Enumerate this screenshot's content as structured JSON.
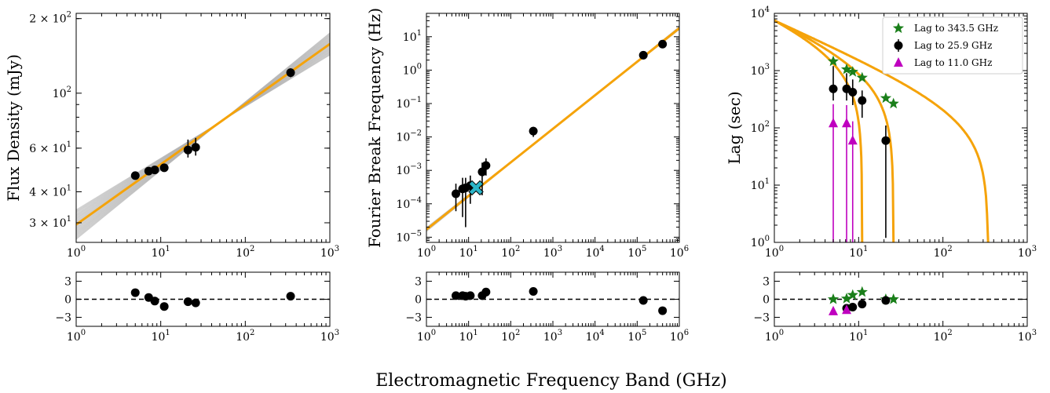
{
  "figure": {
    "xlabel": "Electromagnetic Frequency Band (GHz)"
  },
  "chart_data": [
    {
      "type": "scatter",
      "panel": "flux",
      "ylabel": "Flux Density (mJy)",
      "xscale": "log",
      "yscale": "log",
      "xlim": [
        1,
        1000
      ],
      "ylim": [
        25,
        210
      ],
      "xticks": [
        {
          "v": 1,
          "t": "10^0"
        },
        {
          "v": 10,
          "t": "10^1"
        },
        {
          "v": 100,
          "t": "10^2"
        },
        {
          "v": 1000,
          "t": "10^3"
        }
      ],
      "yticks": [
        {
          "v": 30,
          "t": "3 × 10^1"
        },
        {
          "v": 40,
          "t": "4 × 10^1"
        },
        {
          "v": 60,
          "t": "6 × 10^1"
        },
        {
          "v": 100,
          "t": "10^2"
        },
        {
          "v": 200,
          "t": "2 × 10^2"
        }
      ],
      "series": [
        {
          "marker": "circle",
          "color": "#000000",
          "points": [
            {
              "x": 5.0,
              "y": 46.5,
              "ylo": 45,
              "yhi": 48
            },
            {
              "x": 7.2,
              "y": 48.5,
              "ylo": 47,
              "yhi": 50
            },
            {
              "x": 8.5,
              "y": 49.0,
              "ylo": 47.5,
              "yhi": 50.5
            },
            {
              "x": 11.0,
              "y": 50.0,
              "ylo": 48.5,
              "yhi": 51.5
            },
            {
              "x": 21.0,
              "y": 59.0,
              "ylo": 55,
              "yhi": 65
            },
            {
              "x": 25.9,
              "y": 60.5,
              "ylo": 56,
              "yhi": 66
            },
            {
              "x": 343.5,
              "y": 121.0,
              "ylo": 116,
              "yhi": 126
            }
          ]
        }
      ],
      "model_line": {
        "color": "#f5a30a",
        "x": [
          1,
          1000
        ],
        "y": [
          29.5,
          158
        ]
      },
      "model_samples": {
        "color": "#b0b0b0",
        "count": 40,
        "center": [
          1,
          29.5
        ],
        "end": [
          1000,
          158
        ]
      },
      "residuals": {
        "ylim": [
          -4.5,
          4.5
        ],
        "yticks": [
          {
            "v": -3,
            "t": "−3"
          },
          {
            "v": 0,
            "t": "0"
          },
          {
            "v": 3,
            "t": "3"
          }
        ],
        "points": [
          {
            "x": 5.0,
            "y": 1.1
          },
          {
            "x": 7.2,
            "y": 0.3
          },
          {
            "x": 8.5,
            "y": -0.3
          },
          {
            "x": 11.0,
            "y": -1.2
          },
          {
            "x": 21.0,
            "y": -0.4
          },
          {
            "x": 25.9,
            "y": -0.6
          },
          {
            "x": 343.5,
            "y": 0.5
          }
        ]
      }
    },
    {
      "type": "scatter",
      "panel": "break",
      "ylabel": "Fourier Break Frequency (Hz)",
      "xscale": "log",
      "yscale": "log",
      "xlim": [
        1,
        1000000
      ],
      "ylim": [
        7e-06,
        50
      ],
      "xticks": [
        {
          "v": 1,
          "t": "10^0"
        },
        {
          "v": 10,
          "t": "10^1"
        },
        {
          "v": 100,
          "t": "10^2"
        },
        {
          "v": 1000,
          "t": "10^3"
        },
        {
          "v": 10000,
          "t": "10^4"
        },
        {
          "v": 100000,
          "t": "10^5"
        },
        {
          "v": 1000000,
          "t": "10^6"
        }
      ],
      "yticks": [
        {
          "v": 1e-05,
          "t": "10^-5"
        },
        {
          "v": 0.0001,
          "t": "10^-4"
        },
        {
          "v": 0.001,
          "t": "10^-3"
        },
        {
          "v": 0.01,
          "t": "10^-2"
        },
        {
          "v": 0.1,
          "t": "10^-1"
        },
        {
          "v": 1,
          "t": "10^0"
        },
        {
          "v": 10,
          "t": "10^1"
        }
      ],
      "series": [
        {
          "marker": "circle",
          "color": "#000000",
          "points": [
            {
              "x": 5.0,
              "y": 0.0002,
              "ylo": 6e-05,
              "yhi": 0.0004
            },
            {
              "x": 7.2,
              "y": 0.00028,
              "ylo": 4e-05,
              "yhi": 0.0006
            },
            {
              "x": 8.5,
              "y": 0.0003,
              "ylo": 2e-05,
              "yhi": 0.0006
            },
            {
              "x": 11.0,
              "y": 0.00035,
              "ylo": 0.0001,
              "yhi": 0.0007
            },
            {
              "x": 21.0,
              "y": 0.0009,
              "ylo": 0.00018,
              "yhi": 0.0017
            },
            {
              "x": 25.9,
              "y": 0.0014,
              "ylo": 0.0007,
              "yhi": 0.0023
            },
            {
              "x": 343.5,
              "y": 0.015,
              "ylo": 0.01,
              "yhi": 0.02
            },
            {
              "x": 140000,
              "y": 2.8,
              "ylo": 2.5,
              "yhi": 3.1
            },
            {
              "x": 400000,
              "y": 6.0,
              "ylo": 5.4,
              "yhi": 6.6
            }
          ]
        },
        {
          "marker": "x",
          "color": "#2bb5c8",
          "points": [
            {
              "x": 15.0,
              "y": 0.0003
            }
          ]
        }
      ],
      "model_line": {
        "color": "#f5a30a",
        "x": [
          1,
          1000000
        ],
        "y": [
          1.7e-05,
          18
        ]
      },
      "model_samples": {
        "color": "#9a9a9a",
        "count": 6,
        "center": [
          1,
          1.7e-05
        ],
        "end": [
          1000000,
          18
        ]
      },
      "residuals": {
        "xlim": [
          1,
          1000000
        ],
        "ylim": [
          -4.5,
          4.5
        ],
        "yticks": [
          {
            "v": -3,
            "t": "−3"
          },
          {
            "v": 0,
            "t": "0"
          },
          {
            "v": 3,
            "t": "3"
          }
        ],
        "points": [
          {
            "x": 5.0,
            "y": 0.6
          },
          {
            "x": 7.2,
            "y": 0.6
          },
          {
            "x": 8.5,
            "y": 0.5
          },
          {
            "x": 11.0,
            "y": 0.6
          },
          {
            "x": 21.0,
            "y": 0.6
          },
          {
            "x": 25.9,
            "y": 1.2
          },
          {
            "x": 343.5,
            "y": 1.3
          },
          {
            "x": 140000,
            "y": -0.2
          },
          {
            "x": 400000,
            "y": -1.9
          }
        ]
      }
    },
    {
      "type": "scatter",
      "panel": "lag",
      "ylabel": "Lag (sec)",
      "xscale": "log",
      "yscale": "log",
      "xlim": [
        1,
        1000
      ],
      "ylim": [
        1,
        10000
      ],
      "xticks": [
        {
          "v": 1,
          "t": "10^0"
        },
        {
          "v": 10,
          "t": "10^1"
        },
        {
          "v": 100,
          "t": "10^2"
        },
        {
          "v": 1000,
          "t": "10^3"
        }
      ],
      "yticks": [
        {
          "v": 1,
          "t": "10^0"
        },
        {
          "v": 10,
          "t": "10^1"
        },
        {
          "v": 100,
          "t": "10^2"
        },
        {
          "v": 1000,
          "t": "10^3"
        },
        {
          "v": 10000,
          "t": "10^4"
        }
      ],
      "legend": {
        "placement": "top-right"
      },
      "series": [
        {
          "name": "Lag to 343.5 GHz",
          "marker": "star",
          "color": "#1a7f1a",
          "points": [
            {
              "x": 5.0,
              "y": 1450
            },
            {
              "x": 7.2,
              "y": 1050
            },
            {
              "x": 8.5,
              "y": 950
            },
            {
              "x": 11.0,
              "y": 750
            },
            {
              "x": 21.0,
              "y": 330
            },
            {
              "x": 25.9,
              "y": 265
            }
          ]
        },
        {
          "name": "Lag to 25.9 GHz",
          "marker": "circle",
          "color": "#000000",
          "points": [
            {
              "x": 5.0,
              "y": 480,
              "ylo": 300,
              "yhi": 1200
            },
            {
              "x": 7.2,
              "y": 480,
              "ylo": 300,
              "yhi": 900
            },
            {
              "x": 8.5,
              "y": 420,
              "ylo": 250,
              "yhi": 700
            },
            {
              "x": 11.0,
              "y": 300,
              "ylo": 150,
              "yhi": 450
            },
            {
              "x": 21.0,
              "y": 60,
              "ylo": 1.2,
              "yhi": 110
            }
          ]
        },
        {
          "name": "Lag to 11.0 GHz",
          "marker": "triangle",
          "color": "#bf00bf",
          "points": [
            {
              "x": 5.0,
              "y": 120,
              "ylo": 1,
              "yhi": 260
            },
            {
              "x": 7.2,
              "y": 120,
              "ylo": 1,
              "yhi": 250
            },
            {
              "x": 8.5,
              "y": 60,
              "ylo": 1,
              "yhi": 130
            }
          ]
        }
      ],
      "model_curves": [
        {
          "ref": 343.5,
          "color": "#f5a30a"
        },
        {
          "ref": 25.9,
          "color": "#f5a30a"
        },
        {
          "ref": 11.0,
          "color": "#f5a30a"
        }
      ],
      "residuals": {
        "ylim": [
          -4.5,
          4.5
        ],
        "yticks": [
          {
            "v": -3,
            "t": "−3"
          },
          {
            "v": 0,
            "t": "0"
          },
          {
            "v": 3,
            "t": "3"
          }
        ],
        "points": [
          {
            "series": 0,
            "x": 5.0,
            "y": 0.0
          },
          {
            "series": 0,
            "x": 7.2,
            "y": 0.1
          },
          {
            "series": 0,
            "x": 8.5,
            "y": 0.7
          },
          {
            "series": 0,
            "x": 11.0,
            "y": 1.2
          },
          {
            "series": 0,
            "x": 21.0,
            "y": 0.0
          },
          {
            "series": 0,
            "x": 25.9,
            "y": 0.0
          },
          {
            "series": 1,
            "x": 7.2,
            "y": -1.5
          },
          {
            "series": 1,
            "x": 8.5,
            "y": -1.3
          },
          {
            "series": 1,
            "x": 11.0,
            "y": -0.8
          },
          {
            "series": 1,
            "x": 21.0,
            "y": -0.2
          },
          {
            "series": 2,
            "x": 5.0,
            "y": -2.0
          },
          {
            "series": 2,
            "x": 7.2,
            "y": -1.8
          }
        ]
      }
    }
  ]
}
